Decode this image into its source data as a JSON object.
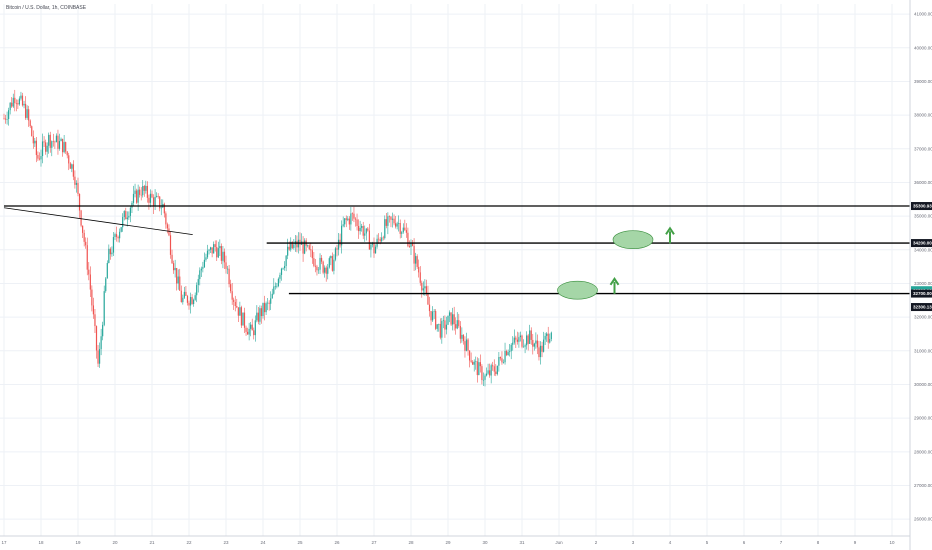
{
  "chart_data": {
    "type": "candlestick",
    "title": "Bitcoin / U.S. Dollar, 1h, COINBASE",
    "ylim": [
      25500,
      41300
    ],
    "y_ticks": [
      41000,
      40000,
      39000,
      38000,
      37000,
      36000,
      35000,
      34000,
      33000,
      32000,
      31000,
      30000,
      29000,
      28000,
      27000,
      26000
    ],
    "y_tick_labels": [
      "41000.00",
      "40000.00",
      "39000.00",
      "38000.00",
      "37000.00",
      "36000.00",
      "35000.00",
      "34000.00",
      "33000.00",
      "32000.00",
      "31000.00",
      "30000.00",
      "29000.00",
      "28000.00",
      "27000.00",
      "26000.00"
    ],
    "x_ticks": [
      "17",
      "18",
      "19",
      "20",
      "21",
      "22",
      "23",
      "24",
      "25",
      "26",
      "27",
      "28",
      "29",
      "30",
      "31",
      "Jun",
      "2",
      "3",
      "4",
      "5",
      "6",
      "7",
      "8",
      "9",
      "10"
    ],
    "grid": true,
    "price_path": [
      {
        "x": 0,
        "y": 37900
      },
      {
        "x": 0.3,
        "y": 38600
      },
      {
        "x": 0.6,
        "y": 38100
      },
      {
        "x": 0.9,
        "y": 36700
      },
      {
        "x": 1.2,
        "y": 37300
      },
      {
        "x": 1.6,
        "y": 37100
      },
      {
        "x": 1.9,
        "y": 36300
      },
      {
        "x": 2.1,
        "y": 34800
      },
      {
        "x": 2.3,
        "y": 33200
      },
      {
        "x": 2.55,
        "y": 30500
      },
      {
        "x": 2.8,
        "y": 33700
      },
      {
        "x": 3.1,
        "y": 34600
      },
      {
        "x": 3.4,
        "y": 35300
      },
      {
        "x": 3.7,
        "y": 35800
      },
      {
        "x": 4.0,
        "y": 35500
      },
      {
        "x": 4.3,
        "y": 35300
      },
      {
        "x": 4.6,
        "y": 33500
      },
      {
        "x": 4.8,
        "y": 32500
      },
      {
        "x": 5.1,
        "y": 32600
      },
      {
        "x": 5.4,
        "y": 33700
      },
      {
        "x": 5.7,
        "y": 34100
      },
      {
        "x": 6.0,
        "y": 33600
      },
      {
        "x": 6.2,
        "y": 32600
      },
      {
        "x": 6.45,
        "y": 31900
      },
      {
        "x": 6.7,
        "y": 31500
      },
      {
        "x": 6.9,
        "y": 32100
      },
      {
        "x": 7.2,
        "y": 32400
      },
      {
        "x": 7.45,
        "y": 33400
      },
      {
        "x": 7.7,
        "y": 34000
      },
      {
        "x": 8.0,
        "y": 34200
      },
      {
        "x": 8.3,
        "y": 33800
      },
      {
        "x": 8.6,
        "y": 33500
      },
      {
        "x": 8.9,
        "y": 33600
      },
      {
        "x": 9.2,
        "y": 34800
      },
      {
        "x": 9.4,
        "y": 35000
      },
      {
        "x": 9.7,
        "y": 34600
      },
      {
        "x": 10.0,
        "y": 34000
      },
      {
        "x": 10.3,
        "y": 34700
      },
      {
        "x": 10.6,
        "y": 34900
      },
      {
        "x": 10.9,
        "y": 34400
      },
      {
        "x": 11.2,
        "y": 33400
      },
      {
        "x": 11.5,
        "y": 32200
      },
      {
        "x": 11.8,
        "y": 31600
      },
      {
        "x": 12.1,
        "y": 32000
      },
      {
        "x": 12.4,
        "y": 31400
      },
      {
        "x": 12.7,
        "y": 30600
      },
      {
        "x": 13.0,
        "y": 30200
      },
      {
        "x": 13.3,
        "y": 30500
      },
      {
        "x": 13.6,
        "y": 31100
      },
      {
        "x": 13.9,
        "y": 31300
      },
      {
        "x": 14.2,
        "y": 31400
      },
      {
        "x": 14.5,
        "y": 31000
      },
      {
        "x": 14.8,
        "y": 31700
      }
    ],
    "horizontal_levels": [
      {
        "price": 35300,
        "label": "35300.93",
        "x_start": 0,
        "x_end": 24.5
      },
      {
        "price": 34200,
        "label": "34200.00",
        "x_start": 7.1,
        "x_end": 24.5
      },
      {
        "price": 32700,
        "label": "32700.00",
        "x_start": 7.7,
        "x_end": 24.5
      }
    ],
    "trendline": {
      "x1": 0,
      "y1": 35250,
      "x2": 5.1,
      "y2": 34450
    },
    "annotations": [
      {
        "type": "ellipse",
        "x": 17.0,
        "y": 34300,
        "color": "#a5d6a7"
      },
      {
        "type": "arrow-up",
        "x": 18.0,
        "y": 34400,
        "color": "#43a047"
      },
      {
        "type": "ellipse",
        "x": 15.5,
        "y": 32800,
        "color": "#a5d6a7"
      },
      {
        "type": "arrow-up",
        "x": 16.5,
        "y": 32900,
        "color": "#43a047"
      }
    ],
    "price_labels": [
      {
        "price": 35300,
        "text": "35300.93",
        "bg": "#131722"
      },
      {
        "price": 34200,
        "text": "34200.00",
        "bg": "#131722"
      },
      {
        "price": 32800,
        "text": "32823.13",
        "bg": "#26a69a"
      },
      {
        "price": 32700,
        "text": "32700.00",
        "bg": "#131722"
      },
      {
        "price": 32300,
        "text": "32300.13",
        "bg": "#131722"
      }
    ],
    "colors": {
      "up": "#26a69a",
      "down": "#ef5350",
      "level": "#000000",
      "grid": "#eef1f6"
    }
  }
}
